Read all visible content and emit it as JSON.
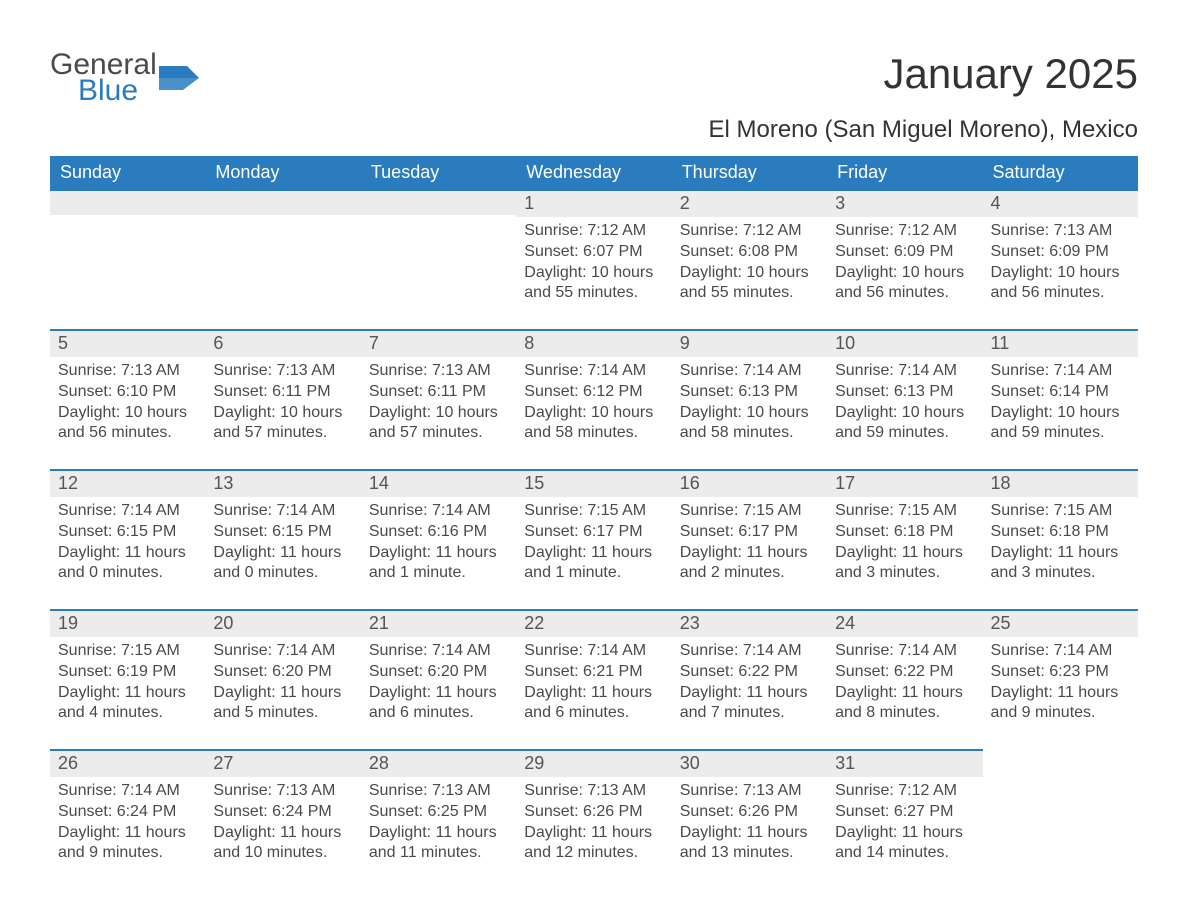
{
  "logo": {
    "word1": "General",
    "word2": "Blue",
    "icon_color": "#2b7bbf",
    "text_color": "#4a4a4a"
  },
  "header": {
    "month_title": "January 2025",
    "location": "El Moreno (San Miguel Moreno), Mexico"
  },
  "colors": {
    "header_bg": "#2b7bbf",
    "header_fg": "#ffffff",
    "band_bg": "#ececec",
    "band_border": "#2b7bbf",
    "body_text": "#4a4a4a",
    "page_bg": "#ffffff"
  },
  "days_of_week": [
    "Sunday",
    "Monday",
    "Tuesday",
    "Wednesday",
    "Thursday",
    "Friday",
    "Saturday"
  ],
  "weeks": [
    [
      null,
      null,
      null,
      {
        "n": "1",
        "sunrise": "Sunrise: 7:12 AM",
        "sunset": "Sunset: 6:07 PM",
        "dl1": "Daylight: 10 hours",
        "dl2": "and 55 minutes."
      },
      {
        "n": "2",
        "sunrise": "Sunrise: 7:12 AM",
        "sunset": "Sunset: 6:08 PM",
        "dl1": "Daylight: 10 hours",
        "dl2": "and 55 minutes."
      },
      {
        "n": "3",
        "sunrise": "Sunrise: 7:12 AM",
        "sunset": "Sunset: 6:09 PM",
        "dl1": "Daylight: 10 hours",
        "dl2": "and 56 minutes."
      },
      {
        "n": "4",
        "sunrise": "Sunrise: 7:13 AM",
        "sunset": "Sunset: 6:09 PM",
        "dl1": "Daylight: 10 hours",
        "dl2": "and 56 minutes."
      }
    ],
    [
      {
        "n": "5",
        "sunrise": "Sunrise: 7:13 AM",
        "sunset": "Sunset: 6:10 PM",
        "dl1": "Daylight: 10 hours",
        "dl2": "and 56 minutes."
      },
      {
        "n": "6",
        "sunrise": "Sunrise: 7:13 AM",
        "sunset": "Sunset: 6:11 PM",
        "dl1": "Daylight: 10 hours",
        "dl2": "and 57 minutes."
      },
      {
        "n": "7",
        "sunrise": "Sunrise: 7:13 AM",
        "sunset": "Sunset: 6:11 PM",
        "dl1": "Daylight: 10 hours",
        "dl2": "and 57 minutes."
      },
      {
        "n": "8",
        "sunrise": "Sunrise: 7:14 AM",
        "sunset": "Sunset: 6:12 PM",
        "dl1": "Daylight: 10 hours",
        "dl2": "and 58 minutes."
      },
      {
        "n": "9",
        "sunrise": "Sunrise: 7:14 AM",
        "sunset": "Sunset: 6:13 PM",
        "dl1": "Daylight: 10 hours",
        "dl2": "and 58 minutes."
      },
      {
        "n": "10",
        "sunrise": "Sunrise: 7:14 AM",
        "sunset": "Sunset: 6:13 PM",
        "dl1": "Daylight: 10 hours",
        "dl2": "and 59 minutes."
      },
      {
        "n": "11",
        "sunrise": "Sunrise: 7:14 AM",
        "sunset": "Sunset: 6:14 PM",
        "dl1": "Daylight: 10 hours",
        "dl2": "and 59 minutes."
      }
    ],
    [
      {
        "n": "12",
        "sunrise": "Sunrise: 7:14 AM",
        "sunset": "Sunset: 6:15 PM",
        "dl1": "Daylight: 11 hours",
        "dl2": "and 0 minutes."
      },
      {
        "n": "13",
        "sunrise": "Sunrise: 7:14 AM",
        "sunset": "Sunset: 6:15 PM",
        "dl1": "Daylight: 11 hours",
        "dl2": "and 0 minutes."
      },
      {
        "n": "14",
        "sunrise": "Sunrise: 7:14 AM",
        "sunset": "Sunset: 6:16 PM",
        "dl1": "Daylight: 11 hours",
        "dl2": "and 1 minute."
      },
      {
        "n": "15",
        "sunrise": "Sunrise: 7:15 AM",
        "sunset": "Sunset: 6:17 PM",
        "dl1": "Daylight: 11 hours",
        "dl2": "and 1 minute."
      },
      {
        "n": "16",
        "sunrise": "Sunrise: 7:15 AM",
        "sunset": "Sunset: 6:17 PM",
        "dl1": "Daylight: 11 hours",
        "dl2": "and 2 minutes."
      },
      {
        "n": "17",
        "sunrise": "Sunrise: 7:15 AM",
        "sunset": "Sunset: 6:18 PM",
        "dl1": "Daylight: 11 hours",
        "dl2": "and 3 minutes."
      },
      {
        "n": "18",
        "sunrise": "Sunrise: 7:15 AM",
        "sunset": "Sunset: 6:18 PM",
        "dl1": "Daylight: 11 hours",
        "dl2": "and 3 minutes."
      }
    ],
    [
      {
        "n": "19",
        "sunrise": "Sunrise: 7:15 AM",
        "sunset": "Sunset: 6:19 PM",
        "dl1": "Daylight: 11 hours",
        "dl2": "and 4 minutes."
      },
      {
        "n": "20",
        "sunrise": "Sunrise: 7:14 AM",
        "sunset": "Sunset: 6:20 PM",
        "dl1": "Daylight: 11 hours",
        "dl2": "and 5 minutes."
      },
      {
        "n": "21",
        "sunrise": "Sunrise: 7:14 AM",
        "sunset": "Sunset: 6:20 PM",
        "dl1": "Daylight: 11 hours",
        "dl2": "and 6 minutes."
      },
      {
        "n": "22",
        "sunrise": "Sunrise: 7:14 AM",
        "sunset": "Sunset: 6:21 PM",
        "dl1": "Daylight: 11 hours",
        "dl2": "and 6 minutes."
      },
      {
        "n": "23",
        "sunrise": "Sunrise: 7:14 AM",
        "sunset": "Sunset: 6:22 PM",
        "dl1": "Daylight: 11 hours",
        "dl2": "and 7 minutes."
      },
      {
        "n": "24",
        "sunrise": "Sunrise: 7:14 AM",
        "sunset": "Sunset: 6:22 PM",
        "dl1": "Daylight: 11 hours",
        "dl2": "and 8 minutes."
      },
      {
        "n": "25",
        "sunrise": "Sunrise: 7:14 AM",
        "sunset": "Sunset: 6:23 PM",
        "dl1": "Daylight: 11 hours",
        "dl2": "and 9 minutes."
      }
    ],
    [
      {
        "n": "26",
        "sunrise": "Sunrise: 7:14 AM",
        "sunset": "Sunset: 6:24 PM",
        "dl1": "Daylight: 11 hours",
        "dl2": "and 9 minutes."
      },
      {
        "n": "27",
        "sunrise": "Sunrise: 7:13 AM",
        "sunset": "Sunset: 6:24 PM",
        "dl1": "Daylight: 11 hours",
        "dl2": "and 10 minutes."
      },
      {
        "n": "28",
        "sunrise": "Sunrise: 7:13 AM",
        "sunset": "Sunset: 6:25 PM",
        "dl1": "Daylight: 11 hours",
        "dl2": "and 11 minutes."
      },
      {
        "n": "29",
        "sunrise": "Sunrise: 7:13 AM",
        "sunset": "Sunset: 6:26 PM",
        "dl1": "Daylight: 11 hours",
        "dl2": "and 12 minutes."
      },
      {
        "n": "30",
        "sunrise": "Sunrise: 7:13 AM",
        "sunset": "Sunset: 6:26 PM",
        "dl1": "Daylight: 11 hours",
        "dl2": "and 13 minutes."
      },
      {
        "n": "31",
        "sunrise": "Sunrise: 7:12 AM",
        "sunset": "Sunset: 6:27 PM",
        "dl1": "Daylight: 11 hours",
        "dl2": "and 14 minutes."
      },
      null
    ]
  ]
}
